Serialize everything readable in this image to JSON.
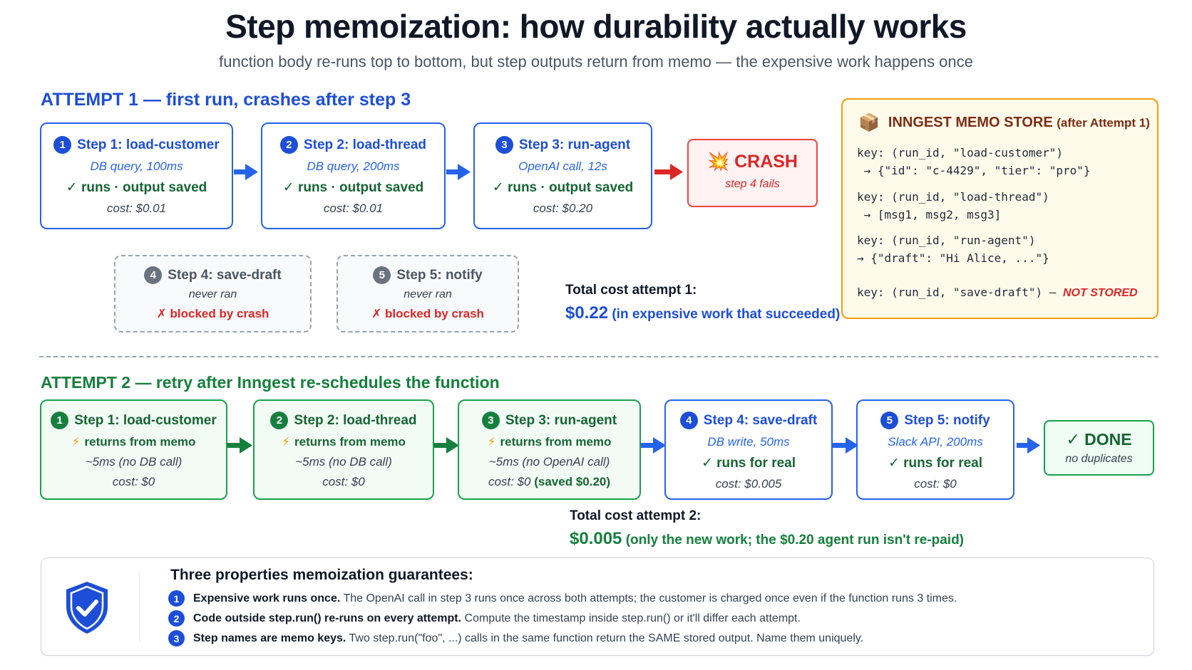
{
  "title": "Step memoization: how durability actually works",
  "subtitle": "function body re-runs top to bottom, but step outputs return from memo — the expensive work happens once",
  "attempt1": {
    "heading": "ATTEMPT 1 — first run, crashes after step 3",
    "steps": [
      {
        "num": "1",
        "title": "Step 1: load-customer",
        "sub": "DB query, 100ms",
        "status": "✓ runs · output saved",
        "cost": "cost: $0.01"
      },
      {
        "num": "2",
        "title": "Step 2: load-thread",
        "sub": "DB query, 200ms",
        "status": "✓ runs · output saved",
        "cost": "cost: $0.01"
      },
      {
        "num": "3",
        "title": "Step 3: run-agent",
        "sub": "OpenAI call, 12s",
        "status": "✓ runs · output saved",
        "cost": "cost: $0.20"
      }
    ],
    "crash": {
      "icon": "💥",
      "title": "CRASH",
      "sub": "step 4 fails"
    },
    "blocked": [
      {
        "num": "4",
        "title": "Step 4: save-draft",
        "sub": "never ran",
        "status": "✗ blocked by crash"
      },
      {
        "num": "5",
        "title": "Step 5: notify",
        "sub": "never ran",
        "status": "✗ blocked by crash"
      }
    ],
    "total_label": "Total cost attempt 1:",
    "total_value": "$0.22",
    "total_note": "(in expensive work that succeeded)"
  },
  "memo_store": {
    "icon": "📦",
    "title": "INNGEST MEMO STORE",
    "title_note": "(after Attempt 1)",
    "entries": [
      {
        "key": "key: (run_id, \"load-customer\")",
        "value": " → {\"id\": \"c-4429\", \"tier\": \"pro\"}"
      },
      {
        "key": "key: (run_id, \"load-thread\")",
        "value": " → [msg1, msg2, msg3]"
      },
      {
        "key": "key: (run_id, \"run-agent\")",
        "value": "→ {\"draft\": \"Hi Alice, ...\"}"
      }
    ],
    "missing_key": "key: (run_id, \"save-draft\") — ",
    "missing_note": "NOT STORED"
  },
  "attempt2": {
    "heading": "ATTEMPT 2 — retry after Inngest re-schedules the function",
    "memo_steps": [
      {
        "num": "1",
        "title": "Step 1: load-customer",
        "status": "returns from memo",
        "sub": "~5ms (no DB call)",
        "cost": "cost: $0",
        "saved": ""
      },
      {
        "num": "2",
        "title": "Step 2: load-thread",
        "status": "returns from memo",
        "sub": "~5ms (no DB call)",
        "cost": "cost: $0",
        "saved": ""
      },
      {
        "num": "3",
        "title": "Step 3: run-agent",
        "status": "returns from memo",
        "sub": "~5ms (no OpenAI call)",
        "cost": "cost: $0",
        "saved": "(saved $0.20)"
      }
    ],
    "run_steps": [
      {
        "num": "4",
        "title": "Step 4: save-draft",
        "sub": "DB write, 50ms",
        "status": "✓ runs for real",
        "cost": "cost: $0.005"
      },
      {
        "num": "5",
        "title": "Step 5: notify",
        "sub": "Slack API, 200ms",
        "status": "✓ runs for real",
        "cost": "cost: $0"
      }
    ],
    "done": {
      "title": "✓ DONE",
      "sub": "no duplicates"
    },
    "total_label": "Total cost attempt 2:",
    "total_value": "$0.005",
    "total_note": "(only the new work; the $0.20 agent run isn't re-paid)"
  },
  "properties": {
    "title": "Three properties memoization guarantees:",
    "items": [
      {
        "num": "1",
        "bold": "Expensive work runs once.",
        "text": "The OpenAI call in step 3 runs once across both attempts; the customer is charged once even if the function runs 3 times."
      },
      {
        "num": "2",
        "bold": "Code outside step.run() re-runs on every attempt.",
        "text": "Compute the timestamp inside step.run() or it'll differ each attempt."
      },
      {
        "num": "3",
        "bold": "Step names are memo keys.",
        "text": "Two step.run(\"foo\", ...) calls in the same function return the SAME stored output.  Name them uniquely."
      }
    ]
  },
  "colors": {
    "blue": "#2563eb",
    "green": "#16a34a",
    "red": "#ef4444",
    "amber": "#f59e0b"
  }
}
